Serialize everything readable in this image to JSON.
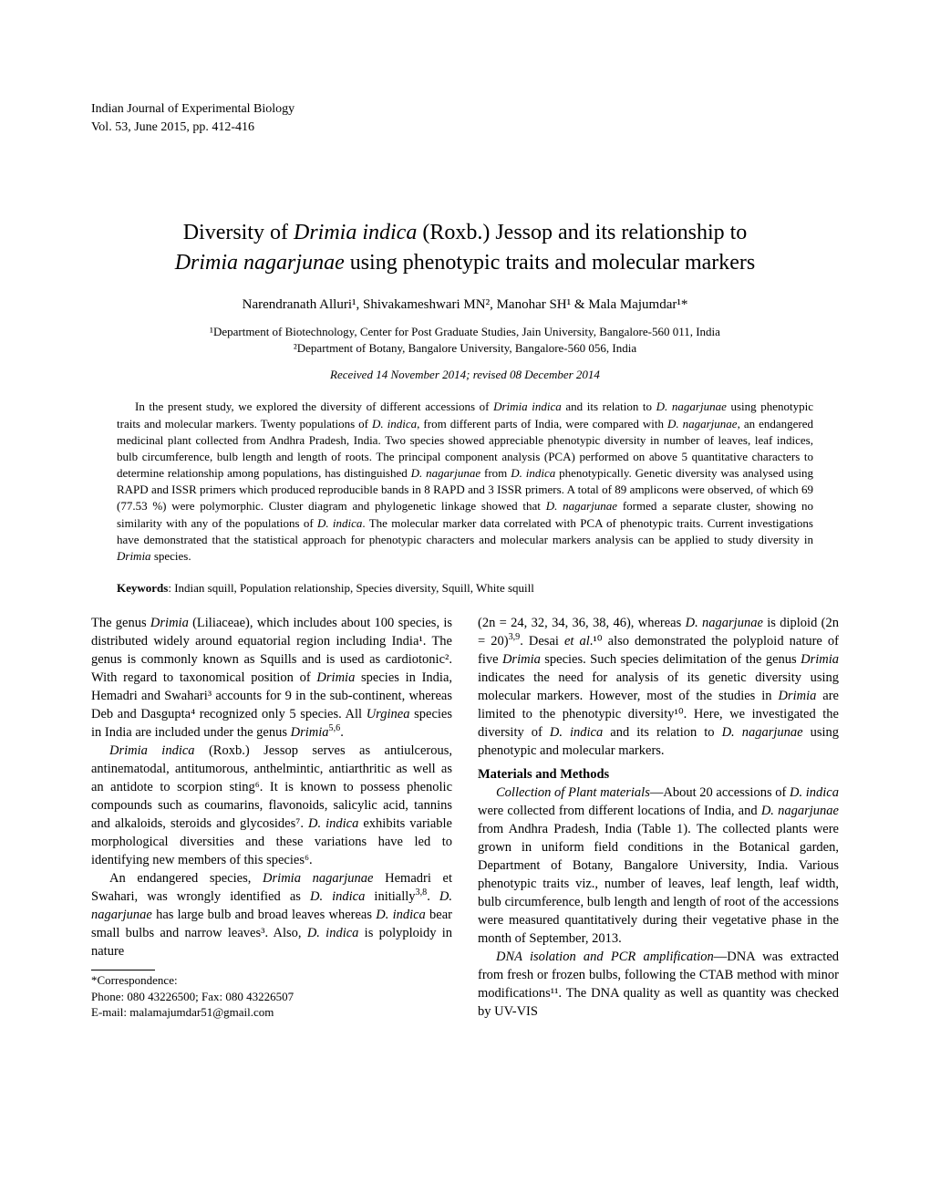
{
  "journal": {
    "name": "Indian Journal of Experimental Biology",
    "issue": "Vol. 53, June 2015, pp. 412-416"
  },
  "title": {
    "line1_pre": "Diversity of ",
    "line1_it": "Drimia indica",
    "line1_post": " (Roxb.) Jessop and its relationship to",
    "line2_it": "Drimia nagarjunae",
    "line2_post": " using phenotypic traits and molecular markers"
  },
  "authors": "Narendranath Alluri¹, Shivakameshwari MN², Manohar SH¹ & Mala Majumdar¹*",
  "affiliations": {
    "a1": "¹Department of Biotechnology, Center for Post Graduate Studies, Jain University, Bangalore-560 011, India",
    "a2": "²Department of Botany, Bangalore University, Bangalore-560 056, India"
  },
  "dates": "Received 14 November 2014; revised 08 December 2014",
  "abstract": {
    "p1_a": "In the present study, we explored the diversity of different accessions of ",
    "p1_it1": "Drimia indica",
    "p1_b": " and its relation to ",
    "p1_it2": "D. nagarjunae",
    "p1_c": " using phenotypic traits and molecular markers. Twenty populations of ",
    "p1_it3": "D. indica",
    "p1_d": ", from different parts of India, were compared with ",
    "p1_it4": "D. nagarjunae",
    "p1_e": ", an endangered medicinal plant collected from Andhra Pradesh, India. Two species showed appreciable phenotypic diversity in number of leaves, leaf indices, bulb circumference, bulb length and length of roots. The principal component analysis (PCA) performed on above 5 quantitative characters to determine relationship among populations, has distinguished ",
    "p1_it5": "D. nagarjunae",
    "p1_f": " from ",
    "p1_it6": "D. indica",
    "p1_g": " phenotypically. Genetic diversity was analysed using RAPD and ISSR primers which produced reproducible bands in 8 RAPD and 3 ISSR primers. A total of 89 amplicons were observed, of which 69 (77.53 %) were polymorphic. Cluster diagram and phylogenetic linkage showed that ",
    "p1_it7": "D. nagarjunae",
    "p1_h": " formed a separate cluster, showing no similarity with any of the populations of ",
    "p1_it8": "D. indica",
    "p1_i": ". The molecular marker data correlated with PCA of phenotypic traits. Current investigations have demonstrated that the statistical approach for phenotypic characters and molecular markers analysis can be applied to study diversity in ",
    "p1_it9": "Drimia",
    "p1_j": " species."
  },
  "keywords": {
    "label": "Keywords",
    "text": ": Indian squill, Population relationship, Species diversity, Squill, White squill"
  },
  "body": {
    "left": {
      "p1_a": "The genus ",
      "p1_it1": "Drimia",
      "p1_b": " (Liliaceae), which includes about 100 species, is distributed widely around equatorial region including India¹. The genus is commonly known as Squills and is used as cardiotonic². With regard to taxonomical position of ",
      "p1_it2": "Drimia",
      "p1_c": " species in India, Hemadri and Swahari³ accounts for 9 in the sub-continent, whereas Deb and Dasgupta⁴ recognized only 5 species. All ",
      "p1_it3": "Urginea",
      "p1_d": " species in India are included under the genus ",
      "p1_it4": "Drimia",
      "p1_sup1": "5,6",
      "p1_e": ".",
      "p2_it1": "Drimia indica",
      "p2_a": " (Roxb.) Jessop serves as antiulcerous, antinematodal, antitumorous, anthelmintic, antiarthritic as well as an antidote to scorpion sting⁶. It is known to possess phenolic compounds such as coumarins, flavonoids, salicylic acid, tannins and alkaloids, steroids and glycosides⁷. ",
      "p2_it2": "D. indica",
      "p2_b": " exhibits variable morphological diversities and these variations have led to identifying new members of this species⁶.",
      "p3_a": "An endangered species, ",
      "p3_it1": "Drimia nagarjunae",
      "p3_b": " Hemadri et Swahari, was wrongly identified as ",
      "p3_it2": "D. indica",
      "p3_c": " initially",
      "p3_sup1": "3,8",
      "p3_d": ". ",
      "p3_it3": "D. nagarjunae",
      "p3_e": " has large bulb and broad leaves whereas ",
      "p3_it4": "D. indica",
      "p3_f": " bear small bulbs and narrow leaves³. Also, ",
      "p3_it5": "D. indica",
      "p3_g": " is polyploidy in nature"
    },
    "right": {
      "p1_a": "(2n = 24, 32, 34, 36, 38, 46), whereas ",
      "p1_it1": "D. nagarjunae",
      "p1_b": " is diploid (2n = 20)",
      "p1_sup1": "3,9",
      "p1_c": ". Desai ",
      "p1_it2": "et al",
      "p1_d": ".¹⁰ also demonstrated the polyploid nature of five ",
      "p1_it3": "Drimia",
      "p1_e": " species. Such species delimitation of the genus ",
      "p1_it4": "Drimia",
      "p1_f": " indicates the need for analysis of its genetic diversity using molecular markers. However, most of the studies in ",
      "p1_it5": "Drimia",
      "p1_g": " are limited to the phenotypic diversity¹⁰. Here, we investigated the diversity of ",
      "p1_it6": "D. indica",
      "p1_h": " and its relation to ",
      "p1_it7": "D. nagarjunae",
      "p1_i": " using phenotypic and molecular markers.",
      "mm_head": "Materials and Methods",
      "p2_it1": "Collection of Plant materials",
      "p2_a": "—About 20 accessions of ",
      "p2_it2": "D. indica",
      "p2_b": " were collected from different locations of India, and ",
      "p2_it3": "D. nagarjunae",
      "p2_c": " from Andhra Pradesh, India (Table 1). The collected plants were grown in uniform field conditions in the Botanical garden, Department of Botany, Bangalore University, India. Various phenotypic traits viz., number of leaves, leaf length, leaf width, bulb circumference, bulb length and length of root of the accessions were measured quantitatively during their vegetative phase in the month of September, 2013.",
      "p3_it1": "DNA isolation and PCR amplification",
      "p3_a": "—DNA was extracted from fresh or frozen bulbs, following the CTAB method with minor modifications¹¹. The DNA quality as well as quantity was checked by UV-VIS"
    }
  },
  "footnote": {
    "corr": "*Correspondence:",
    "phone": "Phone: 080 43226500; Fax: 080 43226507",
    "email": "E-mail: malamajumdar51@gmail.com"
  }
}
